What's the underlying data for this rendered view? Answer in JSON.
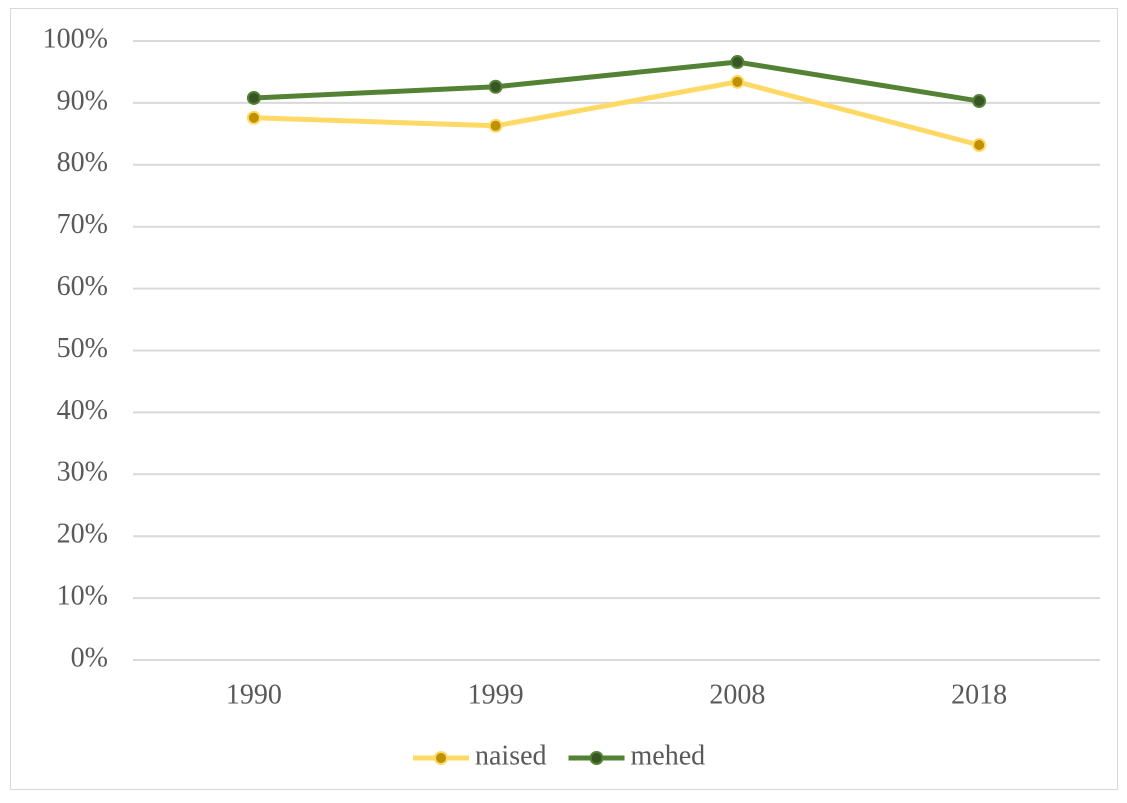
{
  "chart_data": {
    "type": "line",
    "categories": [
      "1990",
      "1999",
      "2008",
      "2018"
    ],
    "series": [
      {
        "name": "naised",
        "color": "#ffd966",
        "marker_color": "#bf9000",
        "values": [
          87.6,
          86.3,
          93.4,
          83.2
        ]
      },
      {
        "name": "mehed",
        "color": "#548235",
        "marker_color": "#375623",
        "values": [
          90.8,
          92.6,
          96.6,
          90.3
        ]
      }
    ],
    "ylim": [
      0,
      100
    ],
    "yticks": [
      {
        "value": 0,
        "label": "0%"
      },
      {
        "value": 10,
        "label": "10%"
      },
      {
        "value": 20,
        "label": "20%"
      },
      {
        "value": 30,
        "label": "30%"
      },
      {
        "value": 40,
        "label": "40%"
      },
      {
        "value": 50,
        "label": "50%"
      },
      {
        "value": 60,
        "label": "60%"
      },
      {
        "value": 70,
        "label": "70%"
      },
      {
        "value": 80,
        "label": "80%"
      },
      {
        "value": 90,
        "label": "90%"
      },
      {
        "value": 100,
        "label": "100%"
      }
    ],
    "grid": true,
    "legend": "bottom"
  }
}
